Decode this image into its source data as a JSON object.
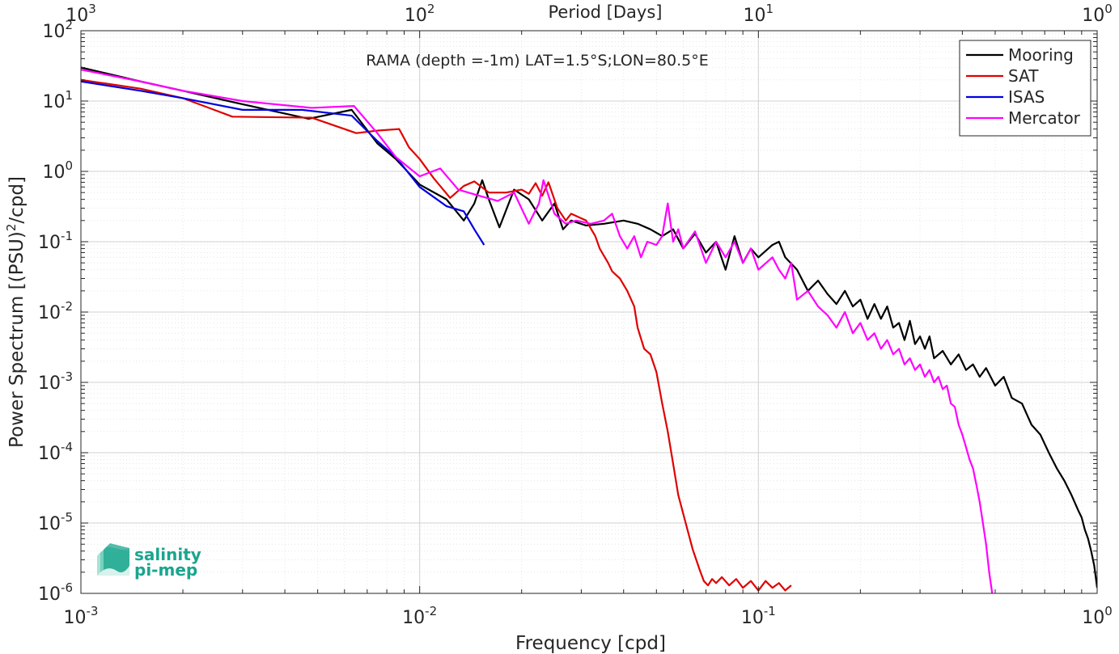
{
  "chart_data": {
    "type": "line",
    "title": "RAMA (depth =-1m) LAT=1.5°S;LON=80.5°E",
    "xlabel": "Frequency [cpd]",
    "ylabel_main": "Power Spectrum [(PSU)",
    "ylabel_sup": "2",
    "ylabel_tail": "/cpd]",
    "top_xlabel": "Period [Days]",
    "xscale": "log",
    "yscale": "log",
    "xlim": [
      0.001,
      1
    ],
    "ylim": [
      1e-06,
      100
    ],
    "grid": true,
    "legend_position": "top-right",
    "x_ticks": [
      {
        "value": 0.001,
        "base": "10",
        "exp": "-3"
      },
      {
        "value": 0.01,
        "base": "10",
        "exp": "-2"
      },
      {
        "value": 0.1,
        "base": "10",
        "exp": "-1"
      },
      {
        "value": 1,
        "base": "10",
        "exp": "0"
      }
    ],
    "y_ticks": [
      {
        "value": 1e-06,
        "base": "10",
        "exp": "-6"
      },
      {
        "value": 1e-05,
        "base": "10",
        "exp": "-5"
      },
      {
        "value": 0.0001,
        "base": "10",
        "exp": "-4"
      },
      {
        "value": 0.001,
        "base": "10",
        "exp": "-3"
      },
      {
        "value": 0.01,
        "base": "10",
        "exp": "-2"
      },
      {
        "value": 0.1,
        "base": "10",
        "exp": "-1"
      },
      {
        "value": 1,
        "base": "10",
        "exp": "0"
      },
      {
        "value": 10,
        "base": "10",
        "exp": "1"
      },
      {
        "value": 100,
        "base": "10",
        "exp": "2"
      }
    ],
    "top_ticks": [
      {
        "period": 1000,
        "base": "10",
        "exp": "3"
      },
      {
        "period": 100,
        "base": "10",
        "exp": "2"
      },
      {
        "period": 10,
        "base": "10",
        "exp": "1"
      },
      {
        "period": 1,
        "base": "10",
        "exp": "0"
      }
    ],
    "series": [
      {
        "name": "Mooring",
        "color": "#000000",
        "points": [
          [
            0.001,
            30
          ],
          [
            0.0015,
            19
          ],
          [
            0.002,
            14
          ],
          [
            0.003,
            9
          ],
          [
            0.0047,
            5.6
          ],
          [
            0.0063,
            7.5
          ],
          [
            0.0075,
            2.5
          ],
          [
            0.0085,
            1.5
          ],
          [
            0.01,
            0.65
          ],
          [
            0.012,
            0.4
          ],
          [
            0.0135,
            0.2
          ],
          [
            0.0145,
            0.35
          ],
          [
            0.0153,
            0.75
          ],
          [
            0.016,
            0.4
          ],
          [
            0.0172,
            0.16
          ],
          [
            0.019,
            0.55
          ],
          [
            0.021,
            0.4
          ],
          [
            0.023,
            0.2
          ],
          [
            0.025,
            0.35
          ],
          [
            0.0265,
            0.15
          ],
          [
            0.028,
            0.2
          ],
          [
            0.031,
            0.17
          ],
          [
            0.035,
            0.18
          ],
          [
            0.04,
            0.2
          ],
          [
            0.044,
            0.18
          ],
          [
            0.048,
            0.15
          ],
          [
            0.052,
            0.12
          ],
          [
            0.056,
            0.15
          ],
          [
            0.06,
            0.08
          ],
          [
            0.065,
            0.13
          ],
          [
            0.07,
            0.07
          ],
          [
            0.075,
            0.1
          ],
          [
            0.08,
            0.04
          ],
          [
            0.085,
            0.12
          ],
          [
            0.09,
            0.05
          ],
          [
            0.095,
            0.08
          ],
          [
            0.1,
            0.06
          ],
          [
            0.11,
            0.09
          ],
          [
            0.115,
            0.1
          ],
          [
            0.12,
            0.06
          ],
          [
            0.13,
            0.04
          ],
          [
            0.14,
            0.02
          ],
          [
            0.15,
            0.028
          ],
          [
            0.16,
            0.018
          ],
          [
            0.17,
            0.013
          ],
          [
            0.18,
            0.02
          ],
          [
            0.19,
            0.012
          ],
          [
            0.2,
            0.015
          ],
          [
            0.21,
            0.008
          ],
          [
            0.22,
            0.013
          ],
          [
            0.23,
            0.008
          ],
          [
            0.24,
            0.012
          ],
          [
            0.25,
            0.006
          ],
          [
            0.26,
            0.007
          ],
          [
            0.27,
            0.004
          ],
          [
            0.28,
            0.0075
          ],
          [
            0.29,
            0.0035
          ],
          [
            0.3,
            0.0045
          ],
          [
            0.31,
            0.003
          ],
          [
            0.32,
            0.0045
          ],
          [
            0.33,
            0.0022
          ],
          [
            0.35,
            0.0028
          ],
          [
            0.37,
            0.0018
          ],
          [
            0.39,
            0.0025
          ],
          [
            0.41,
            0.0015
          ],
          [
            0.43,
            0.0018
          ],
          [
            0.45,
            0.0012
          ],
          [
            0.47,
            0.0016
          ],
          [
            0.5,
            0.0009
          ],
          [
            0.53,
            0.0012
          ],
          [
            0.56,
            0.0006
          ],
          [
            0.6,
            0.0005
          ],
          [
            0.64,
            0.00025
          ],
          [
            0.68,
            0.00018
          ],
          [
            0.72,
            0.0001
          ],
          [
            0.76,
            6e-05
          ],
          [
            0.8,
            4e-05
          ],
          [
            0.84,
            2.5e-05
          ],
          [
            0.88,
            1.5e-05
          ],
          [
            0.9,
            1.2e-05
          ],
          [
            0.92,
            8e-06
          ],
          [
            0.94,
            6e-06
          ],
          [
            0.96,
            4e-06
          ],
          [
            0.98,
            2.5e-06
          ],
          [
            1.0,
            1.2e-06
          ]
        ]
      },
      {
        "name": "SAT",
        "color": "#e00000",
        "points": [
          [
            0.001,
            20
          ],
          [
            0.0015,
            15
          ],
          [
            0.002,
            11
          ],
          [
            0.0028,
            6
          ],
          [
            0.0048,
            5.8
          ],
          [
            0.0065,
            3.5
          ],
          [
            0.0075,
            3.8
          ],
          [
            0.0087,
            4.0
          ],
          [
            0.0093,
            2.2
          ],
          [
            0.01,
            1.5
          ],
          [
            0.011,
            0.8
          ],
          [
            0.0123,
            0.42
          ],
          [
            0.0135,
            0.62
          ],
          [
            0.0145,
            0.72
          ],
          [
            0.016,
            0.5
          ],
          [
            0.018,
            0.5
          ],
          [
            0.02,
            0.55
          ],
          [
            0.021,
            0.48
          ],
          [
            0.022,
            0.68
          ],
          [
            0.023,
            0.45
          ],
          [
            0.024,
            0.7
          ],
          [
            0.0255,
            0.3
          ],
          [
            0.027,
            0.2
          ],
          [
            0.028,
            0.25
          ],
          [
            0.031,
            0.2
          ],
          [
            0.033,
            0.12
          ],
          [
            0.034,
            0.08
          ],
          [
            0.036,
            0.05
          ],
          [
            0.037,
            0.038
          ],
          [
            0.039,
            0.03
          ],
          [
            0.041,
            0.02
          ],
          [
            0.043,
            0.012
          ],
          [
            0.044,
            0.006
          ],
          [
            0.046,
            0.003
          ],
          [
            0.048,
            0.0025
          ],
          [
            0.05,
            0.0014
          ],
          [
            0.052,
            0.0005
          ],
          [
            0.054,
            0.0002
          ],
          [
            0.056,
            7e-05
          ],
          [
            0.058,
            2.5e-05
          ],
          [
            0.061,
            1e-05
          ],
          [
            0.064,
            4.2e-06
          ],
          [
            0.067,
            2.2e-06
          ],
          [
            0.069,
            1.5e-06
          ],
          [
            0.071,
            1.3e-06
          ],
          [
            0.073,
            1.6e-06
          ],
          [
            0.075,
            1.4e-06
          ],
          [
            0.078,
            1.7e-06
          ],
          [
            0.082,
            1.3e-06
          ],
          [
            0.086,
            1.6e-06
          ],
          [
            0.09,
            1.2e-06
          ],
          [
            0.095,
            1.5e-06
          ],
          [
            0.1,
            1.1e-06
          ],
          [
            0.105,
            1.5e-06
          ],
          [
            0.11,
            1.2e-06
          ],
          [
            0.115,
            1.4e-06
          ],
          [
            0.12,
            1.1e-06
          ],
          [
            0.125,
            1.3e-06
          ]
        ]
      },
      {
        "name": "ISAS",
        "color": "#0000e0",
        "points": [
          [
            0.001,
            19
          ],
          [
            0.0015,
            14
          ],
          [
            0.002,
            11
          ],
          [
            0.003,
            7.5
          ],
          [
            0.0045,
            7.5
          ],
          [
            0.0063,
            6.2
          ],
          [
            0.0075,
            2.7
          ],
          [
            0.0085,
            1.6
          ],
          [
            0.01,
            0.6
          ],
          [
            0.012,
            0.32
          ],
          [
            0.0135,
            0.27
          ],
          [
            0.0145,
            0.15
          ],
          [
            0.0155,
            0.09
          ]
        ]
      },
      {
        "name": "Mercator",
        "color": "#ff00ff",
        "points": [
          [
            0.001,
            28
          ],
          [
            0.0015,
            19
          ],
          [
            0.002,
            14
          ],
          [
            0.003,
            10
          ],
          [
            0.0048,
            8
          ],
          [
            0.0064,
            8.5
          ],
          [
            0.0075,
            3.5
          ],
          [
            0.0085,
            1.6
          ],
          [
            0.01,
            0.85
          ],
          [
            0.0115,
            1.1
          ],
          [
            0.013,
            0.55
          ],
          [
            0.015,
            0.45
          ],
          [
            0.017,
            0.38
          ],
          [
            0.019,
            0.5
          ],
          [
            0.021,
            0.18
          ],
          [
            0.0225,
            0.35
          ],
          [
            0.0232,
            0.75
          ],
          [
            0.025,
            0.25
          ],
          [
            0.027,
            0.18
          ],
          [
            0.029,
            0.2
          ],
          [
            0.032,
            0.18
          ],
          [
            0.035,
            0.2
          ],
          [
            0.037,
            0.25
          ],
          [
            0.039,
            0.12
          ],
          [
            0.041,
            0.08
          ],
          [
            0.043,
            0.12
          ],
          [
            0.045,
            0.06
          ],
          [
            0.047,
            0.1
          ],
          [
            0.05,
            0.09
          ],
          [
            0.052,
            0.12
          ],
          [
            0.054,
            0.35
          ],
          [
            0.056,
            0.1
          ],
          [
            0.058,
            0.15
          ],
          [
            0.06,
            0.08
          ],
          [
            0.065,
            0.14
          ],
          [
            0.07,
            0.05
          ],
          [
            0.075,
            0.1
          ],
          [
            0.08,
            0.06
          ],
          [
            0.085,
            0.1
          ],
          [
            0.09,
            0.05
          ],
          [
            0.095,
            0.08
          ],
          [
            0.1,
            0.04
          ],
          [
            0.11,
            0.06
          ],
          [
            0.115,
            0.04
          ],
          [
            0.12,
            0.03
          ],
          [
            0.125,
            0.05
          ],
          [
            0.13,
            0.015
          ],
          [
            0.14,
            0.02
          ],
          [
            0.15,
            0.012
          ],
          [
            0.16,
            0.009
          ],
          [
            0.17,
            0.006
          ],
          [
            0.18,
            0.01
          ],
          [
            0.19,
            0.005
          ],
          [
            0.2,
            0.007
          ],
          [
            0.21,
            0.004
          ],
          [
            0.22,
            0.005
          ],
          [
            0.23,
            0.003
          ],
          [
            0.24,
            0.004
          ],
          [
            0.25,
            0.0025
          ],
          [
            0.26,
            0.003
          ],
          [
            0.27,
            0.0018
          ],
          [
            0.28,
            0.0022
          ],
          [
            0.29,
            0.0015
          ],
          [
            0.3,
            0.0018
          ],
          [
            0.31,
            0.0012
          ],
          [
            0.32,
            0.0015
          ],
          [
            0.33,
            0.001
          ],
          [
            0.34,
            0.0012
          ],
          [
            0.35,
            0.0008
          ],
          [
            0.36,
            0.0009
          ],
          [
            0.37,
            0.0005
          ],
          [
            0.38,
            0.00045
          ],
          [
            0.39,
            0.00025
          ],
          [
            0.4,
            0.00018
          ],
          [
            0.41,
            0.00012
          ],
          [
            0.42,
            8e-05
          ],
          [
            0.43,
            6e-05
          ],
          [
            0.44,
            3.5e-05
          ],
          [
            0.45,
            2e-05
          ],
          [
            0.46,
            1e-05
          ],
          [
            0.47,
            5e-06
          ],
          [
            0.48,
            2e-06
          ],
          [
            0.49,
            1e-06
          ]
        ]
      }
    ]
  },
  "logo": {
    "line1": "salinity",
    "line2": "pi-mep",
    "color": "#1aa58e"
  }
}
